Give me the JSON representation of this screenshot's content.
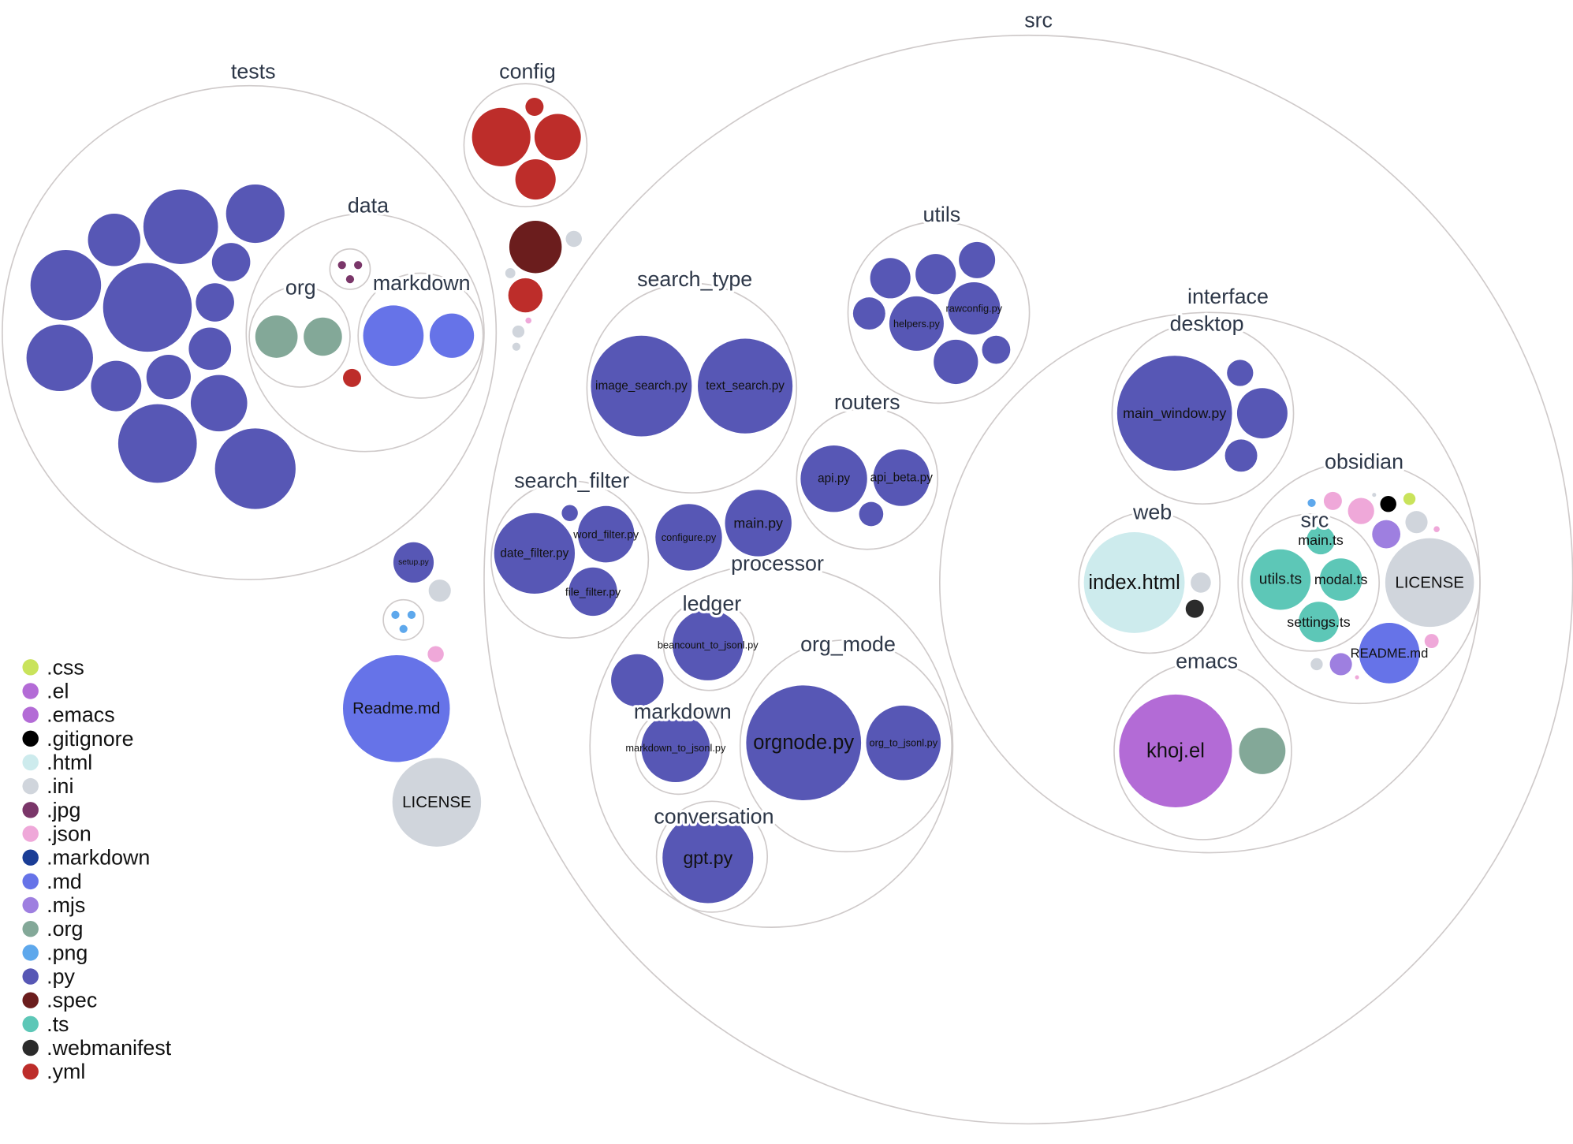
{
  "colors": {
    ".css": "#c9e35b",
    ".el": "#b36bd6",
    ".emacs": "#b36bd6",
    ".gitignore": "#000000",
    ".html": "#cdebed",
    ".ini": "#d0d5dc",
    ".jpg": "#7a3669",
    ".json": "#efa8d9",
    ".markdown": "#1a3d96",
    ".md": "#6673e8",
    ".mjs": "#9e7fe0",
    ".org": "#83a898",
    ".png": "#5ea8ec",
    ".py": "#5757b5",
    ".spec": "#6b1d1d",
    ".ts": "#5dc7b7",
    ".webmanifest": "#2b2b2b",
    ".yml": "#bd2d2a"
  },
  "legend": [
    ".css",
    ".el",
    ".emacs",
    ".gitignore",
    ".html",
    ".ini",
    ".jpg",
    ".json",
    ".markdown",
    ".md",
    ".mjs",
    ".org",
    ".png",
    ".py",
    ".spec",
    ".ts",
    ".webmanifest",
    ".yml"
  ],
  "folders": [
    {
      "label": "tests"
    },
    {
      "label": "data"
    },
    {
      "label": "org"
    },
    {
      "label": "markdown"
    },
    {
      "label": ""
    },
    {
      "label": "config"
    },
    {
      "label": "src"
    },
    {
      "label": "search_type"
    },
    {
      "label": "utils"
    },
    {
      "label": "routers"
    },
    {
      "label": "search_filter"
    },
    {
      "label": "processor"
    },
    {
      "label": "ledger"
    },
    {
      "label": "markdown"
    },
    {
      "label": "org_mode"
    },
    {
      "label": "conversation"
    },
    {
      "label": "interface"
    },
    {
      "label": "desktop"
    },
    {
      "label": "web"
    },
    {
      "label": "obsidian"
    },
    {
      "label": "src"
    },
    {
      "label": "emacs"
    },
    {
      "label": ""
    }
  ],
  "files": [
    {
      "ext": ".py"
    },
    {
      "ext": ".py"
    },
    {
      "ext": ".py"
    },
    {
      "ext": ".py"
    },
    {
      "ext": ".py"
    },
    {
      "ext": ".py"
    },
    {
      "ext": ".py"
    },
    {
      "ext": ".py"
    },
    {
      "ext": ".py"
    },
    {
      "ext": ".py"
    },
    {
      "ext": ".py"
    },
    {
      "ext": ".py"
    },
    {
      "ext": ".py"
    },
    {
      "ext": ".py"
    },
    {
      "ext": ".org"
    },
    {
      "ext": ".org"
    },
    {
      "ext": ".md"
    },
    {
      "ext": ".md"
    },
    {
      "ext": ".jpg"
    },
    {
      "ext": ".jpg"
    },
    {
      "ext": ".jpg"
    },
    {
      "ext": ".yml"
    },
    {
      "ext": ".yml"
    },
    {
      "ext": ".yml"
    },
    {
      "ext": ".yml"
    },
    {
      "ext": ".yml"
    },
    {
      "ext": ".spec"
    },
    {
      "ext": ".ini"
    },
    {
      "ext": ".ini"
    },
    {
      "ext": ".yml"
    },
    {
      "ext": ".json"
    },
    {
      "ext": ".ini"
    },
    {
      "ext": ".ini"
    },
    {
      "ext": ".py",
      "label": "setup.py"
    },
    {
      "ext": ".ini"
    },
    {
      "ext": ".png"
    },
    {
      "ext": ".png"
    },
    {
      "ext": ".png"
    },
    {
      "ext": ".json"
    },
    {
      "ext": ".md",
      "label": "Readme.md"
    },
    {
      "ext": ".ini",
      "label": "LICENSE"
    },
    {
      "ext": ".py",
      "label": "image_search.py"
    },
    {
      "ext": ".py",
      "label": "text_search.py"
    },
    {
      "ext": ".py"
    },
    {
      "ext": ".py"
    },
    {
      "ext": ".py"
    },
    {
      "ext": ".py"
    },
    {
      "ext": ".py",
      "label": "helpers.py"
    },
    {
      "ext": ".py",
      "label": "rawconfig.py"
    },
    {
      "ext": ".py"
    },
    {
      "ext": ".py"
    },
    {
      "ext": ".py",
      "label": "api.py"
    },
    {
      "ext": ".py",
      "label": "api_beta.py"
    },
    {
      "ext": ".py"
    },
    {
      "ext": ".py",
      "label": "date_filter.py"
    },
    {
      "ext": ".py",
      "label": "word_filter.py"
    },
    {
      "ext": ".py",
      "label": "file_filter.py"
    },
    {
      "ext": ".py"
    },
    {
      "ext": ".py",
      "label": "configure.py"
    },
    {
      "ext": ".py",
      "label": "main.py"
    },
    {
      "ext": ".py"
    },
    {
      "ext": ".py",
      "label": "beancount_to_jsonl.py"
    },
    {
      "ext": ".py",
      "label": "markdown_to_jsonl.py"
    },
    {
      "ext": ".py",
      "label": "orgnode.py"
    },
    {
      "ext": ".py",
      "label": "org_to_jsonl.py"
    },
    {
      "ext": ".py",
      "label": "gpt.py"
    },
    {
      "ext": ".py",
      "label": "main_window.py"
    },
    {
      "ext": ".py"
    },
    {
      "ext": ".py"
    },
    {
      "ext": ".py"
    },
    {
      "ext": ".html",
      "label": "index.html"
    },
    {
      "ext": ".ini"
    },
    {
      "ext": ".webmanifest"
    },
    {
      "ext": ".png"
    },
    {
      "ext": ".json"
    },
    {
      "ext": ".json"
    },
    {
      "ext": ".ini"
    },
    {
      "ext": ".gitignore"
    },
    {
      "ext": ".css"
    },
    {
      "ext": ".ini"
    },
    {
      "ext": ".mjs"
    },
    {
      "ext": ".json"
    },
    {
      "ext": ".ini",
      "label": "LICENSE"
    },
    {
      "ext": ".md",
      "label": "README.md"
    },
    {
      "ext": ".json"
    },
    {
      "ext": ".ini"
    },
    {
      "ext": ".mjs"
    },
    {
      "ext": ".json"
    },
    {
      "ext": ".ts",
      "label": "main.ts"
    },
    {
      "ext": ".ts",
      "label": "utils.ts"
    },
    {
      "ext": ".ts",
      "label": "modal.ts"
    },
    {
      "ext": ".ts",
      "label": "settings.ts"
    },
    {
      "ext": ".el",
      "label": "khoj.el"
    },
    {
      "ext": ".org"
    }
  ]
}
